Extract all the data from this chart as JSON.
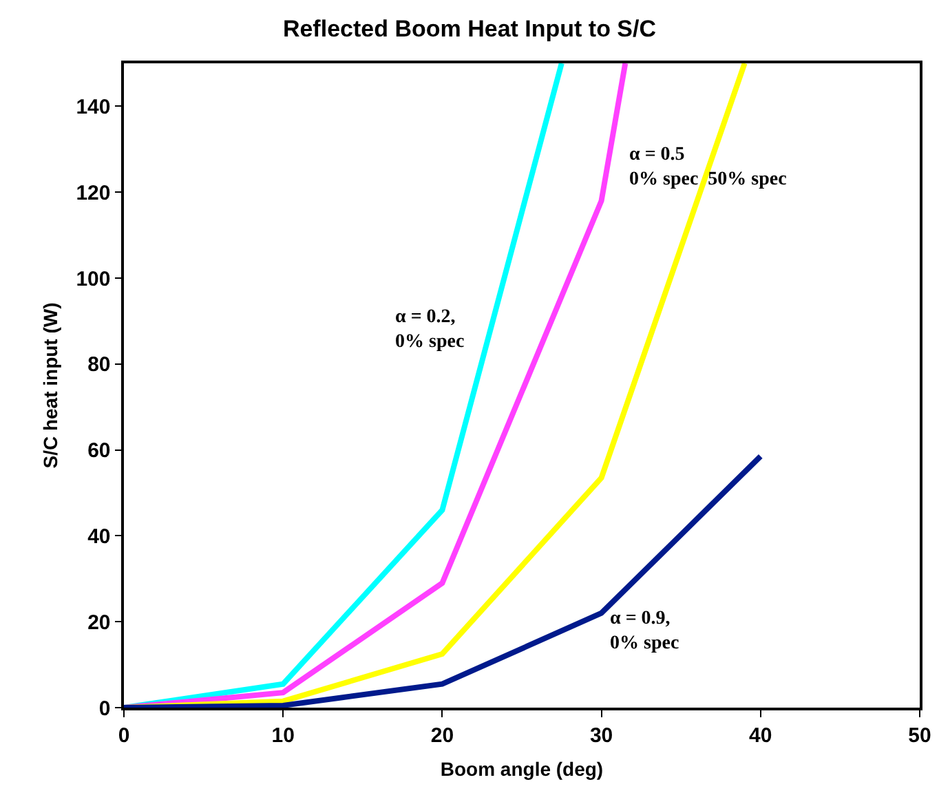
{
  "chart_data": {
    "type": "line",
    "title": "Reflected Boom Heat Input to S/C",
    "xlabel": "Boom angle (deg)",
    "ylabel": "S/C heat input (W)",
    "xlim": [
      0,
      50
    ],
    "xticks": [
      0,
      10,
      20,
      30,
      40,
      50
    ],
    "ylim": [
      0,
      150
    ],
    "yticks": [
      0,
      20,
      40,
      60,
      80,
      100,
      120,
      140
    ],
    "grid": false,
    "marker": "none",
    "line_style": "solid",
    "series": [
      {
        "color": "#00ffff",
        "x": [
          0,
          10,
          20,
          27.5
        ],
        "values": [
          0,
          5.5,
          46,
          150
        ]
      },
      {
        "color": "#ff40ff",
        "x": [
          0,
          10,
          20,
          30,
          31.5
        ],
        "values": [
          0,
          3.5,
          29,
          118,
          150
        ]
      },
      {
        "color": "#ffff00",
        "x": [
          0,
          10,
          20,
          30,
          39
        ],
        "values": [
          0,
          1.5,
          12.5,
          53.5,
          150
        ]
      },
      {
        "color": "#001a8c",
        "x": [
          0,
          10,
          20,
          30,
          40
        ],
        "values": [
          0,
          0.5,
          5.5,
          22,
          58.5
        ]
      }
    ],
    "annotations": [
      "α = 0.2,\n0% spec",
      "α = 0.5\n0% spec  50% spec",
      "α = 0.9,\n0% spec"
    ]
  }
}
